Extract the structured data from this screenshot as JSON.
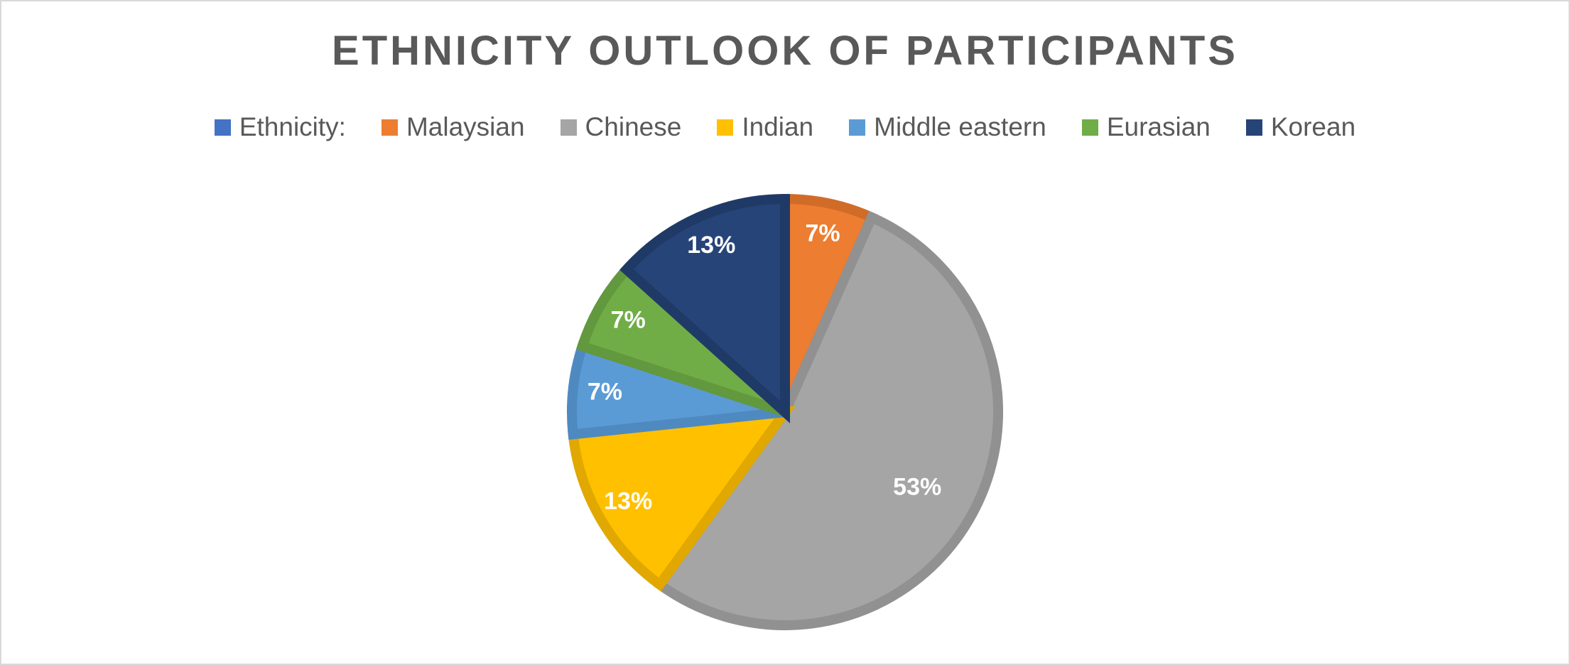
{
  "chart_data": {
    "type": "pie",
    "title": "ETHNICITY OUTLOOK OF PARTICIPANTS",
    "legend_position": "top",
    "categories": [
      "Ethnicity:",
      "Malaysian",
      "Chinese",
      "Indian",
      "Middle eastern",
      "Eurasian",
      "Korean"
    ],
    "values": [
      0,
      1,
      8,
      2,
      1,
      1,
      2
    ],
    "labels": [
      "",
      "7%",
      "53%",
      "13%",
      "7%",
      "7%",
      "13%"
    ],
    "colors": [
      "#4472C4",
      "#ED7D31",
      "#A5A5A5",
      "#FFC000",
      "#5B9BD5",
      "#70AD47",
      "#264478"
    ],
    "border_colors": [
      "#3B64AD",
      "#D06C28",
      "#919191",
      "#E0A800",
      "#4E8AC0",
      "#62983E",
      "#1F3A66"
    ]
  }
}
